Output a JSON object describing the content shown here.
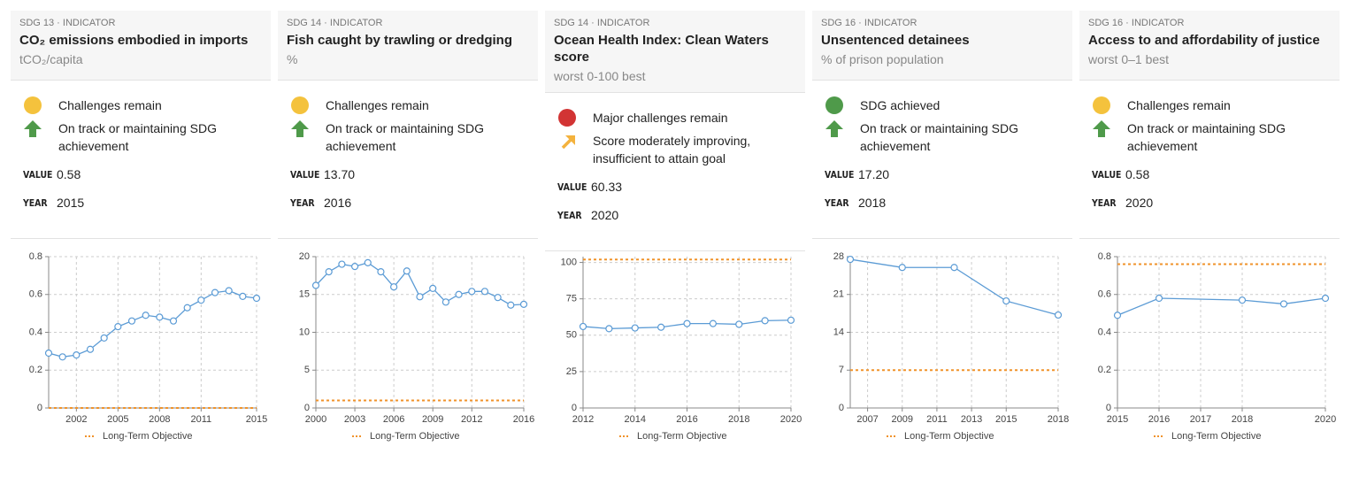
{
  "cards": [
    {
      "indicator": "SDG 13 · INDICATOR",
      "title": "CO₂ emissions embodied in imports",
      "unit": "tCO₂/capita",
      "status": {
        "label": "Challenges remain",
        "color": "#f4c23d"
      },
      "trend": {
        "label": "On track or maintaining SDG achievement",
        "color": "#4f9a4a",
        "direction": "up"
      },
      "value_label": "VALUE",
      "value": "0.58",
      "year_label": "YEAR",
      "year": "2015"
    },
    {
      "indicator": "SDG 14 · INDICATOR",
      "title": "Fish caught by trawling or dredging",
      "unit": "%",
      "status": {
        "label": "Challenges remain",
        "color": "#f4c23d"
      },
      "trend": {
        "label": "On track or maintaining SDG achievement",
        "color": "#4f9a4a",
        "direction": "up"
      },
      "value_label": "VALUE",
      "value": "13.70",
      "year_label": "YEAR",
      "year": "2016"
    },
    {
      "indicator": "SDG 14 · INDICATOR",
      "title": "Ocean Health Index: Clean Waters score",
      "unit": "worst 0-100 best",
      "status": {
        "label": "Major challenges remain",
        "color": "#d23434"
      },
      "trend": {
        "label": "Score moderately improving, insufficient to attain goal",
        "color": "#f4b23d",
        "direction": "diagonal"
      },
      "value_label": "VALUE",
      "value": "60.33",
      "year_label": "YEAR",
      "year": "2020"
    },
    {
      "indicator": "SDG 16 · INDICATOR",
      "title": "Unsentenced detainees",
      "unit": "% of prison population",
      "status": {
        "label": "SDG achieved",
        "color": "#4f9a4a"
      },
      "trend": {
        "label": "On track or maintaining SDG achievement",
        "color": "#4f9a4a",
        "direction": "up"
      },
      "value_label": "VALUE",
      "value": "17.20",
      "year_label": "YEAR",
      "year": "2018"
    },
    {
      "indicator": "SDG 16 · INDICATOR",
      "title": "Access to and affordability of justice",
      "unit": "worst 0–1 best",
      "status": {
        "label": "Challenges remain",
        "color": "#f4c23d"
      },
      "trend": {
        "label": "On track or maintaining SDG achievement",
        "color": "#4f9a4a",
        "direction": "up"
      },
      "value_label": "VALUE",
      "value": "0.58",
      "year_label": "YEAR",
      "year": "2020"
    }
  ],
  "chart_data": [
    {
      "type": "line",
      "color": "#5b9bd5",
      "grid": true,
      "x": [
        2000,
        2001,
        2002,
        2003,
        2004,
        2005,
        2006,
        2007,
        2008,
        2009,
        2010,
        2011,
        2012,
        2013,
        2014,
        2015
      ],
      "values": [
        0.29,
        0.27,
        0.28,
        0.31,
        0.37,
        0.43,
        0.46,
        0.49,
        0.48,
        0.46,
        0.53,
        0.57,
        0.61,
        0.62,
        0.59,
        0.58
      ],
      "xlim": [
        2000,
        2015
      ],
      "xticks": [
        2002,
        2005,
        2008,
        2011,
        2015
      ],
      "ylim": [
        0,
        0.8
      ],
      "yticks": [
        0,
        0.2,
        0.4,
        0.6,
        0.8
      ],
      "objective": {
        "name": "Long-Term Objective",
        "value": 0,
        "color": "#f0932b"
      }
    },
    {
      "type": "line",
      "color": "#5b9bd5",
      "grid": true,
      "x": [
        2000,
        2001,
        2002,
        2003,
        2004,
        2005,
        2006,
        2007,
        2008,
        2009,
        2010,
        2011,
        2012,
        2013,
        2014,
        2015,
        2016
      ],
      "values": [
        16.2,
        18,
        19,
        18.7,
        19.2,
        18,
        16,
        18.1,
        14.7,
        15.8,
        14,
        15,
        15.4,
        15.4,
        14.6,
        13.6,
        13.7
      ],
      "xlim": [
        2000,
        2016
      ],
      "xticks": [
        2000,
        2003,
        2006,
        2009,
        2012,
        2016
      ],
      "ylim": [
        0,
        20
      ],
      "yticks": [
        0,
        5,
        10,
        15,
        20
      ],
      "objective": {
        "name": "Long-Term Objective",
        "value": 1,
        "color": "#f0932b"
      }
    },
    {
      "type": "line",
      "color": "#5b9bd5",
      "grid": true,
      "x": [
        2012,
        2013,
        2014,
        2015,
        2016,
        2017,
        2018,
        2019,
        2020
      ],
      "values": [
        56,
        54.5,
        55,
        55.5,
        58,
        58,
        57.5,
        60,
        60.33
      ],
      "xlim": [
        2012,
        2020
      ],
      "xticks": [
        2012,
        2014,
        2016,
        2018,
        2020
      ],
      "ylim": [
        0,
        104
      ],
      "yticks": [
        0,
        25,
        50,
        75,
        100
      ],
      "objective": {
        "name": "Long-Term Objective",
        "value": 102,
        "color": "#f0932b"
      }
    },
    {
      "type": "line",
      "color": "#5b9bd5",
      "grid": true,
      "x": [
        2006,
        2009,
        2012,
        2015,
        2018
      ],
      "values": [
        27.5,
        26,
        26,
        19.8,
        17.2
      ],
      "xlim": [
        2006,
        2018
      ],
      "xticks": [
        2007,
        2009,
        2011,
        2013,
        2015,
        2018
      ],
      "ylim": [
        0,
        28
      ],
      "yticks": [
        0,
        7,
        14,
        21,
        28
      ],
      "objective": {
        "name": "Long-Term Objective",
        "value": 7,
        "color": "#f0932b"
      }
    },
    {
      "type": "line",
      "color": "#5b9bd5",
      "grid": true,
      "x": [
        2015,
        2016,
        2018,
        2019,
        2020
      ],
      "values": [
        0.49,
        0.58,
        0.57,
        0.55,
        0.58
      ],
      "xlim": [
        2015,
        2020
      ],
      "xticks": [
        2015,
        2016,
        2017,
        2018,
        2020
      ],
      "ylim": [
        0,
        0.8
      ],
      "yticks": [
        0,
        0.2,
        0.4,
        0.6,
        0.8
      ],
      "objective": {
        "name": "Long-Term Objective",
        "value": 0.76,
        "color": "#f0932b"
      }
    }
  ]
}
